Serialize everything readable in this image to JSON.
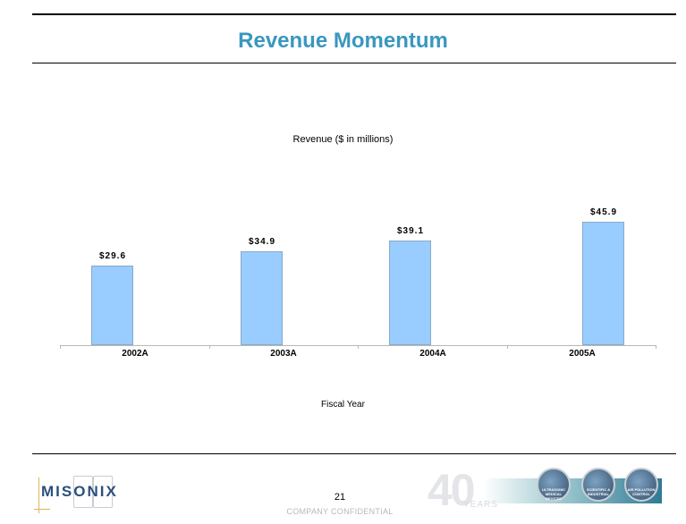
{
  "slide": {
    "title": "Revenue Momentum",
    "page_number": "21",
    "confidential_notice": "COMPANY CONFIDENTIAL",
    "logo_text": "MISONIX",
    "banner": {
      "anniversary_number": "40",
      "anniversary_word": "YEARS",
      "circles": [
        "ULTRASONIC MEDICAL DEVICES",
        "SCIENTIFIC & INDUSTRIAL",
        "AIR POLLUTION CONTROL"
      ]
    }
  },
  "colors": {
    "title": "#3a97bf",
    "bar_fill": "#99ccff",
    "bar_border": "#8aa9c8",
    "axis": "#b8b8b8",
    "logo": "#2b4f7e"
  },
  "chart_data": {
    "type": "bar",
    "title": "Revenue ($ in millions)",
    "xlabel": "Fiscal Year",
    "ylabel": "",
    "categories": [
      "2002A",
      "2003A",
      "2004A",
      "2005A"
    ],
    "values": [
      29.6,
      34.9,
      39.1,
      45.9
    ],
    "data_labels": [
      "$29.6",
      "$34.9",
      "$39.1",
      "$45.9"
    ],
    "ylim": [
      0,
      62
    ],
    "grid": false,
    "legend": "none",
    "bar_positions_note": "2005A bar placed offset to the right within its category"
  }
}
